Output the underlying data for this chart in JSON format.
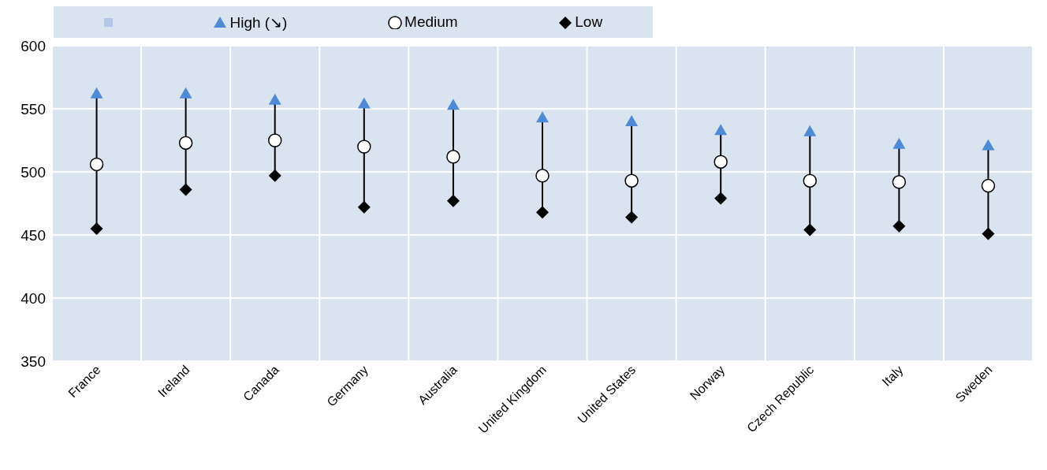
{
  "chart_data": {
    "type": "scatter",
    "categories": [
      "France",
      "Ireland",
      "Canada",
      "Germany",
      "Australia",
      "United Kingdom",
      "United States",
      "Norway",
      "Czech Republic",
      "Italy",
      "Sweden"
    ],
    "series": [
      {
        "name": "High (↘)",
        "color": "#4f8ad6",
        "marker": "triangle",
        "values": [
          562,
          562,
          557,
          554,
          553,
          543,
          540,
          533,
          532,
          522,
          521
        ]
      },
      {
        "name": "Medium",
        "color": "#ffffff",
        "marker": "circle",
        "values": [
          506,
          523,
          525,
          520,
          512,
          497,
          493,
          508,
          493,
          492,
          489
        ]
      },
      {
        "name": "Low",
        "color": "#000000",
        "marker": "diamond",
        "values": [
          455,
          486,
          497,
          472,
          477,
          468,
          464,
          479,
          454,
          457,
          451
        ]
      }
    ],
    "ylim": [
      350,
      600
    ],
    "yticks": [
      350,
      400,
      450,
      500,
      550,
      600
    ],
    "grid": true,
    "legend": "top left"
  }
}
